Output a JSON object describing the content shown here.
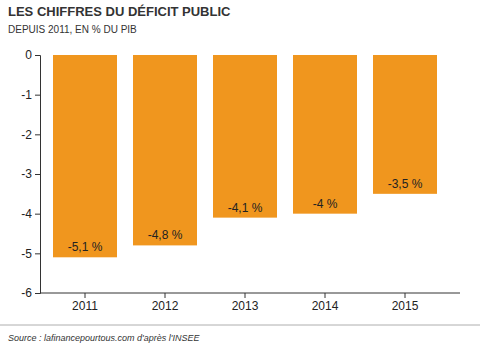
{
  "chart_data": {
    "type": "bar",
    "title": "LES CHIFFRES DU DÉFICIT PUBLIC",
    "subtitle": "DEPUIS 2011, EN % DU PIB",
    "annotations": [
      "Source : lafinancepourtous.com d'après l'INSEE"
    ],
    "categories": [
      "2011",
      "2012",
      "2013",
      "2014",
      "2015"
    ],
    "values": [
      -5.1,
      -4.8,
      -4.1,
      -4,
      -3.5
    ],
    "value_labels": [
      "-5,1 %",
      "-4,8 %",
      "-4,1 %",
      "-4 %",
      "-3,5 %"
    ],
    "data_labels": true,
    "color": "#f0961e",
    "ylim": [
      0,
      -6
    ],
    "yticks": [
      0,
      -1,
      -2,
      -3,
      -4,
      -5,
      -6
    ],
    "grid": false
  }
}
